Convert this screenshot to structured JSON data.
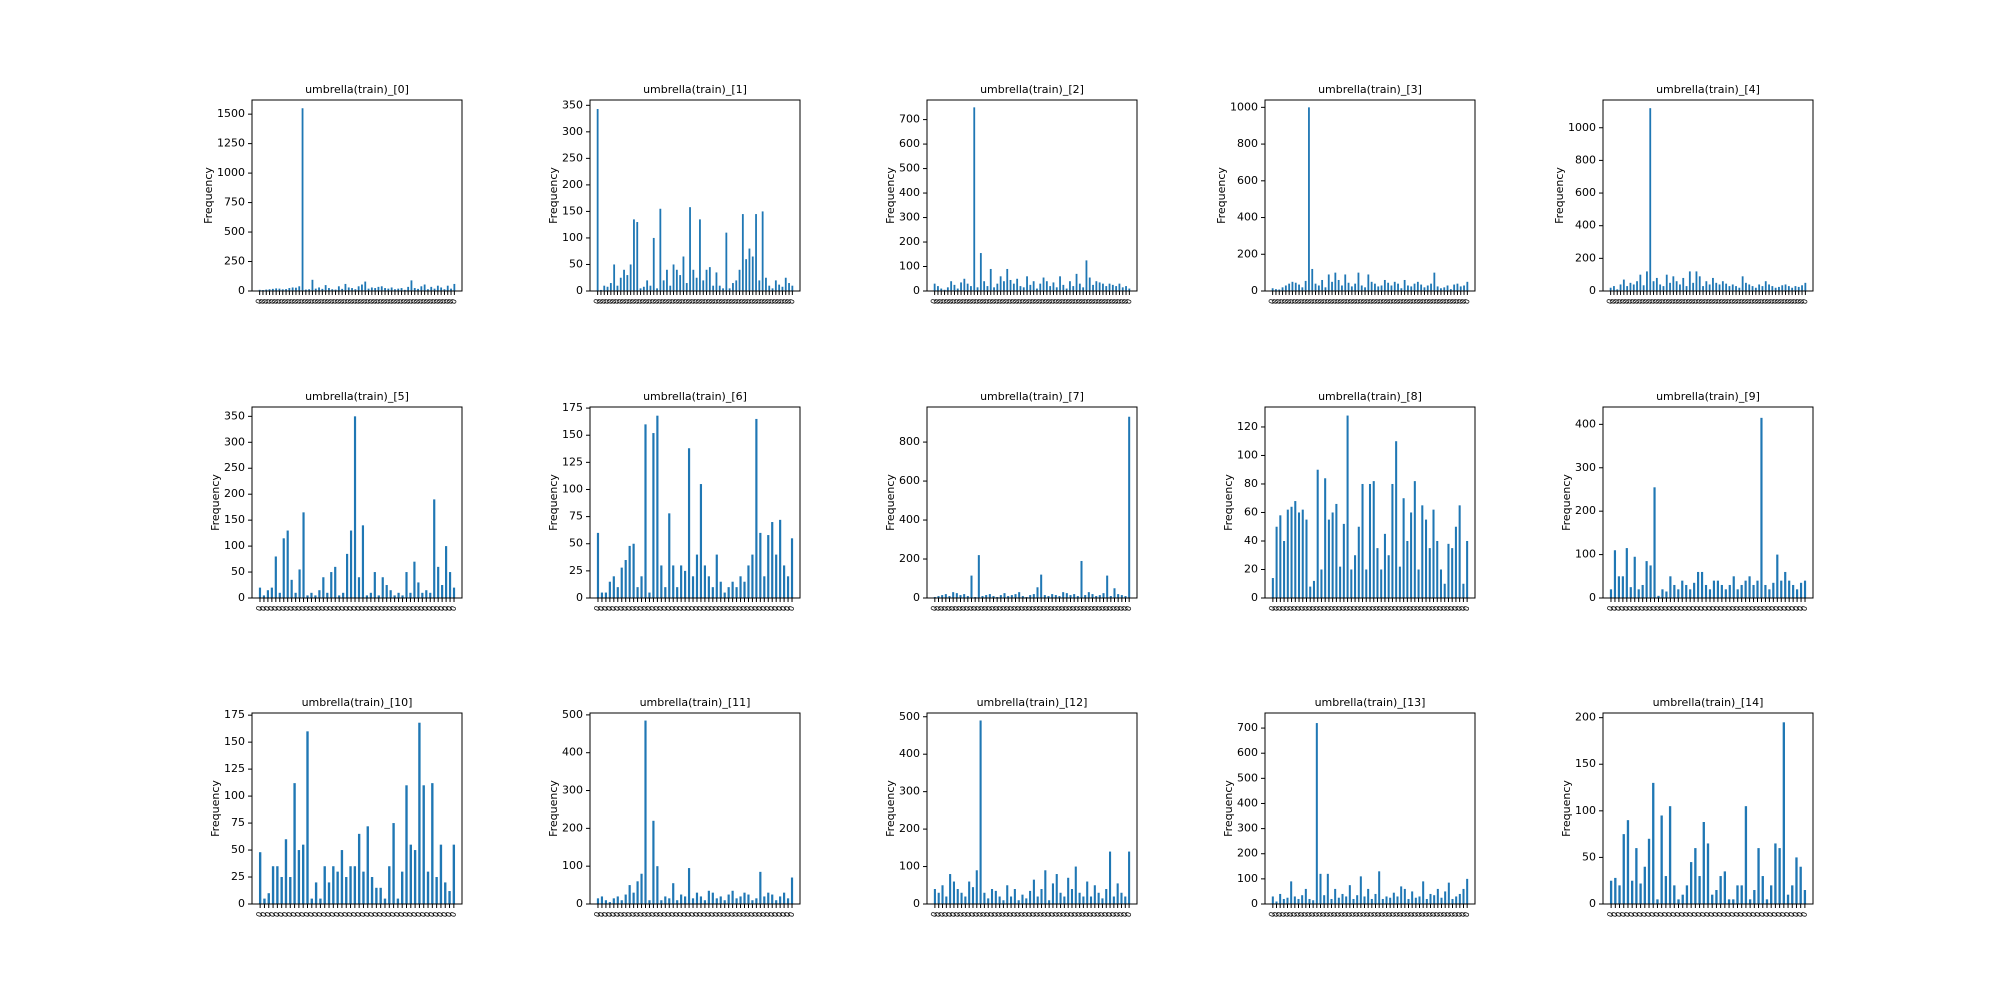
{
  "figure": {
    "bar_color": "#1f77b4"
  },
  "chart_data": [
    {
      "type": "bar",
      "title": "umbrella(train)_[0]",
      "ylabel": "Frequency",
      "ylim": [
        0,
        1620
      ],
      "yticks": [
        0,
        250,
        500,
        750,
        1000,
        1250,
        1500
      ],
      "xtick_label_text": "0",
      "values": [
        10,
        8,
        12,
        15,
        18,
        22,
        20,
        14,
        16,
        25,
        30,
        28,
        40,
        1550,
        12,
        15,
        95,
        20,
        30,
        18,
        50,
        25,
        15,
        12,
        40,
        18,
        60,
        30,
        25,
        15,
        40,
        55,
        80,
        20,
        30,
        25,
        35,
        40,
        25,
        20,
        30,
        15,
        20,
        25,
        10,
        35,
        90,
        25,
        18,
        40,
        55,
        15,
        35,
        20,
        45,
        30,
        15,
        45,
        20,
        60
      ],
      "grid": false
    },
    {
      "type": "bar",
      "title": "umbrella(train)_[1]",
      "ylabel": "Frequency",
      "ylim": [
        0,
        360
      ],
      "yticks": [
        0,
        50,
        100,
        150,
        200,
        250,
        300,
        350
      ],
      "xtick_label_text": "0",
      "values": [
        343,
        2,
        10,
        8,
        15,
        50,
        10,
        25,
        40,
        30,
        50,
        135,
        130,
        5,
        8,
        20,
        10,
        100,
        5,
        155,
        20,
        40,
        10,
        50,
        40,
        30,
        65,
        15,
        158,
        40,
        25,
        135,
        20,
        40,
        45,
        10,
        35,
        10,
        5,
        110,
        5,
        15,
        20,
        40,
        145,
        60,
        80,
        65,
        145,
        20,
        150,
        25,
        10,
        5,
        20,
        12,
        8,
        25,
        15,
        10
      ],
      "grid": false
    },
    {
      "type": "bar",
      "title": "umbrella(train)_[2]",
      "ylabel": "Frequency",
      "ylim": [
        0,
        780
      ],
      "yticks": [
        0,
        100,
        200,
        300,
        400,
        500,
        600,
        700
      ],
      "xtick_label_text": "0",
      "values": [
        30,
        20,
        10,
        5,
        15,
        40,
        25,
        10,
        35,
        50,
        30,
        20,
        750,
        15,
        155,
        40,
        20,
        90,
        15,
        30,
        60,
        40,
        90,
        45,
        30,
        50,
        20,
        15,
        60,
        25,
        40,
        10,
        30,
        55,
        40,
        20,
        35,
        15,
        60,
        25,
        10,
        40,
        20,
        70,
        30,
        15,
        125,
        55,
        25,
        40,
        35,
        30,
        20,
        30,
        25,
        20,
        30,
        15,
        20,
        10
      ],
      "grid": false
    },
    {
      "type": "bar",
      "title": "umbrella(train)_[3]",
      "ylabel": "Frequency",
      "ylim": [
        0,
        1040
      ],
      "yticks": [
        0,
        200,
        400,
        600,
        800,
        1000
      ],
      "xtick_label_text": "0",
      "values": [
        15,
        10,
        8,
        20,
        30,
        40,
        50,
        45,
        35,
        20,
        55,
        1000,
        120,
        40,
        30,
        60,
        20,
        90,
        50,
        100,
        60,
        30,
        90,
        45,
        25,
        40,
        100,
        30,
        20,
        90,
        50,
        40,
        25,
        30,
        60,
        45,
        30,
        50,
        40,
        15,
        60,
        30,
        25,
        40,
        50,
        35,
        20,
        30,
        40,
        100,
        25,
        15,
        20,
        30,
        10,
        35,
        40,
        25,
        30,
        50
      ],
      "grid": false
    },
    {
      "type": "bar",
      "title": "umbrella(train)_[4]",
      "ylabel": "Frequency",
      "ylim": [
        0,
        1170
      ],
      "yticks": [
        0,
        200,
        400,
        600,
        800,
        1000
      ],
      "xtick_label_text": "0",
      "values": [
        20,
        30,
        10,
        40,
        70,
        30,
        50,
        40,
        60,
        100,
        35,
        120,
        1120,
        60,
        80,
        40,
        30,
        100,
        50,
        90,
        60,
        40,
        80,
        30,
        120,
        50,
        120,
        90,
        30,
        60,
        40,
        80,
        50,
        40,
        60,
        45,
        30,
        40,
        30,
        20,
        90,
        50,
        40,
        30,
        20,
        40,
        30,
        60,
        40,
        30,
        20,
        25,
        35,
        40,
        30,
        20,
        30,
        25,
        35,
        50
      ],
      "grid": false
    },
    {
      "type": "bar",
      "title": "umbrella(train)_[5]",
      "ylabel": "Frequency",
      "ylim": [
        0,
        368
      ],
      "yticks": [
        0,
        50,
        100,
        150,
        200,
        250,
        300,
        350
      ],
      "xtick_label_text": "0",
      "values": [
        20,
        5,
        15,
        20,
        80,
        10,
        115,
        130,
        35,
        10,
        55,
        165,
        5,
        10,
        5,
        15,
        40,
        10,
        50,
        60,
        5,
        10,
        85,
        130,
        350,
        40,
        140,
        5,
        10,
        50,
        5,
        40,
        25,
        15,
        5,
        10,
        5,
        50,
        10,
        70,
        30,
        10,
        15,
        10,
        190,
        60,
        25,
        100,
        50,
        20
      ],
      "grid": false
    },
    {
      "type": "bar",
      "title": "umbrella(train)_[6]",
      "ylabel": "Frequency",
      "ylim": [
        0,
        176
      ],
      "yticks": [
        0,
        25,
        50,
        75,
        100,
        125,
        150,
        175
      ],
      "xtick_label_text": "0",
      "values": [
        60,
        5,
        5,
        15,
        20,
        10,
        28,
        35,
        48,
        50,
        10,
        20,
        160,
        5,
        152,
        168,
        30,
        10,
        78,
        30,
        10,
        30,
        25,
        138,
        20,
        40,
        105,
        30,
        20,
        10,
        40,
        15,
        5,
        10,
        15,
        10,
        20,
        15,
        30,
        40,
        165,
        60,
        20,
        58,
        70,
        40,
        72,
        30,
        20,
        55
      ],
      "grid": false
    },
    {
      "type": "bar",
      "title": "umbrella(train)_[7]",
      "ylabel": "Frequency",
      "ylim": [
        0,
        980
      ],
      "yticks": [
        0,
        200,
        400,
        600,
        800
      ],
      "xtick_label_text": "0",
      "values": [
        5,
        10,
        15,
        20,
        10,
        30,
        25,
        15,
        20,
        10,
        115,
        5,
        220,
        10,
        15,
        20,
        10,
        5,
        15,
        25,
        10,
        15,
        20,
        30,
        10,
        5,
        15,
        20,
        55,
        120,
        15,
        10,
        20,
        15,
        10,
        30,
        25,
        15,
        20,
        10,
        190,
        15,
        30,
        20,
        10,
        15,
        25,
        115,
        10,
        50,
        20,
        15,
        10,
        930
      ],
      "grid": false
    },
    {
      "type": "bar",
      "title": "umbrella(train)_[8]",
      "ylabel": "Frequency",
      "ylim": [
        0,
        134
      ],
      "yticks": [
        0,
        20,
        40,
        60,
        80,
        100,
        120
      ],
      "xtick_label_text": "0",
      "values": [
        14,
        50,
        58,
        40,
        62,
        64,
        68,
        60,
        62,
        55,
        8,
        12,
        90,
        20,
        84,
        55,
        60,
        66,
        22,
        52,
        128,
        20,
        30,
        50,
        80,
        20,
        80,
        82,
        35,
        20,
        45,
        30,
        80,
        110,
        22,
        70,
        40,
        60,
        82,
        20,
        65,
        55,
        35,
        62,
        40,
        20,
        10,
        38,
        35,
        50,
        65,
        10,
        40
      ],
      "grid": false
    },
    {
      "type": "bar",
      "title": "umbrella(train)_[9]",
      "ylabel": "Frequency",
      "ylim": [
        0,
        440
      ],
      "yticks": [
        0,
        100,
        200,
        300,
        400
      ],
      "xtick_label_text": "0",
      "values": [
        20,
        110,
        50,
        50,
        115,
        25,
        95,
        20,
        30,
        85,
        75,
        255,
        5,
        20,
        15,
        50,
        30,
        20,
        40,
        30,
        20,
        35,
        60,
        60,
        30,
        20,
        40,
        40,
        30,
        20,
        30,
        50,
        20,
        30,
        40,
        50,
        30,
        40,
        415,
        30,
        20,
        35,
        100,
        40,
        60,
        40,
        30,
        20,
        35,
        40
      ],
      "grid": false
    },
    {
      "type": "bar",
      "title": "umbrella(train)_[10]",
      "ylabel": "Frequency",
      "ylim": [
        0,
        177
      ],
      "yticks": [
        0,
        25,
        50,
        75,
        100,
        125,
        150,
        175
      ],
      "xtick_label_text": "0",
      "values": [
        48,
        5,
        10,
        35,
        35,
        25,
        60,
        25,
        112,
        50,
        55,
        160,
        5,
        20,
        5,
        35,
        20,
        35,
        30,
        50,
        25,
        35,
        35,
        65,
        30,
        72,
        25,
        15,
        15,
        5,
        35,
        75,
        5,
        30,
        110,
        55,
        50,
        168,
        110,
        30,
        112,
        25,
        55,
        20,
        12,
        55
      ],
      "grid": false
    },
    {
      "type": "bar",
      "title": "umbrella(train)_[11]",
      "ylabel": "Frequency",
      "ylim": [
        0,
        505
      ],
      "yticks": [
        0,
        100,
        200,
        300,
        400,
        500
      ],
      "xtick_label_text": "0",
      "values": [
        15,
        20,
        10,
        5,
        15,
        20,
        10,
        25,
        50,
        30,
        60,
        80,
        485,
        10,
        220,
        100,
        10,
        20,
        15,
        55,
        10,
        25,
        20,
        95,
        15,
        30,
        20,
        10,
        35,
        30,
        15,
        20,
        10,
        25,
        35,
        15,
        20,
        30,
        25,
        10,
        15,
        85,
        20,
        30,
        25,
        10,
        20,
        30,
        15,
        70
      ],
      "grid": false
    },
    {
      "type": "bar",
      "title": "umbrella(train)_[12]",
      "ylabel": "Frequency",
      "ylim": [
        0,
        510
      ],
      "yticks": [
        0,
        100,
        200,
        300,
        400,
        500
      ],
      "xtick_label_text": "0",
      "values": [
        40,
        30,
        50,
        20,
        80,
        60,
        40,
        30,
        20,
        60,
        45,
        90,
        490,
        30,
        15,
        40,
        35,
        20,
        10,
        50,
        20,
        40,
        10,
        25,
        15,
        35,
        65,
        20,
        40,
        90,
        10,
        55,
        80,
        30,
        20,
        70,
        40,
        100,
        30,
        20,
        60,
        20,
        50,
        30,
        15,
        40,
        140,
        20,
        55,
        30,
        20,
        140
      ],
      "grid": false
    },
    {
      "type": "bar",
      "title": "umbrella(train)_[13]",
      "ylabel": "Frequency",
      "ylim": [
        0,
        760
      ],
      "yticks": [
        0,
        100,
        200,
        300,
        400,
        500,
        600,
        700
      ],
      "xtick_label_text": "0",
      "values": [
        30,
        10,
        40,
        20,
        25,
        90,
        30,
        20,
        35,
        60,
        20,
        15,
        720,
        120,
        35,
        120,
        20,
        60,
        25,
        40,
        30,
        75,
        20,
        35,
        110,
        30,
        60,
        20,
        40,
        130,
        20,
        30,
        25,
        45,
        30,
        70,
        60,
        20,
        50,
        25,
        30,
        90,
        20,
        40,
        35,
        60,
        25,
        50,
        85,
        20,
        30,
        40,
        60,
        100
      ],
      "grid": false
    },
    {
      "type": "bar",
      "title": "umbrella(train)_[14]",
      "ylabel": "Frequency",
      "ylim": [
        0,
        205
      ],
      "yticks": [
        0,
        50,
        100,
        150,
        200
      ],
      "xtick_label_text": "0",
      "values": [
        25,
        28,
        20,
        75,
        90,
        25,
        60,
        22,
        40,
        70,
        130,
        5,
        95,
        30,
        105,
        20,
        5,
        10,
        20,
        45,
        60,
        30,
        88,
        65,
        10,
        15,
        30,
        35,
        5,
        5,
        20,
        20,
        105,
        5,
        15,
        60,
        30,
        5,
        20,
        65,
        60,
        195,
        10,
        20,
        50,
        40,
        15
      ],
      "grid": false
    }
  ]
}
